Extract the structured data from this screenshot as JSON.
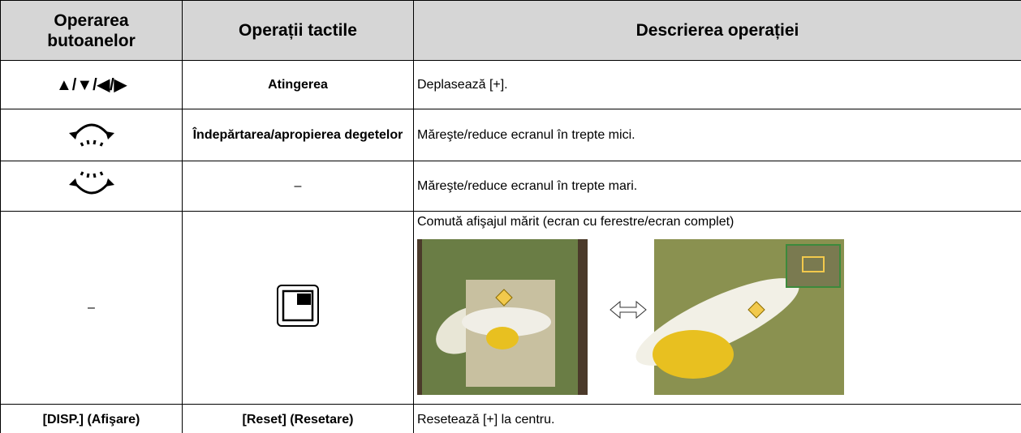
{
  "table": {
    "header": [
      "Operarea butoanelor",
      "Operații tactile",
      "Descrierea operației"
    ],
    "rows": [
      {
        "button": "▲/▼/◀/▶",
        "touch": "Atingerea",
        "description": "Deplasează [+]."
      },
      {
        "touch": "Îndepărtarea/apropierea degetelor",
        "description": "Măreşte/reduce ecranul în trepte mici."
      },
      {
        "touch": "–",
        "description": "Măreşte/reduce ecranul în trepte mari."
      },
      {
        "button": "–",
        "description": "Comută afişajul mărit (ecran cu ferestre/ecran complet)"
      },
      {
        "button": "[DISP.] (Afişare)",
        "touch": "[Reset] (Resetare)",
        "description": "Resetează [+] la centru."
      }
    ]
  }
}
